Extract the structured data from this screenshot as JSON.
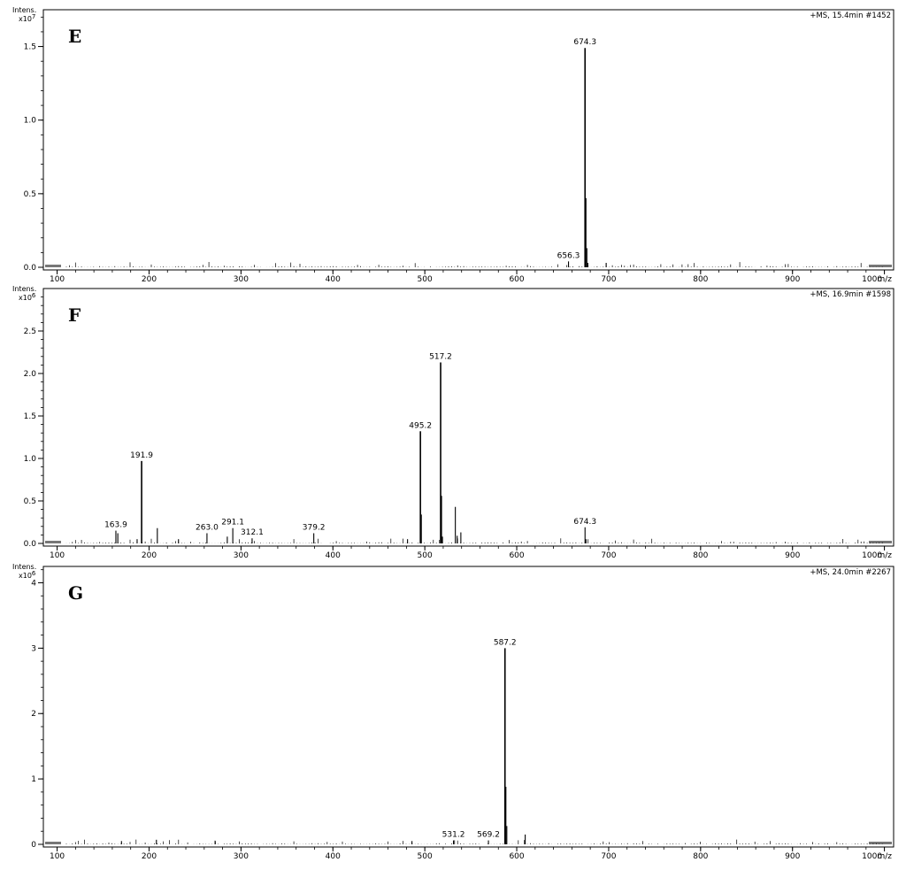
{
  "chart_data": [
    {
      "type": "line",
      "panel_label": "E",
      "ylabel": "Intens.",
      "yexp": "7",
      "xunit": "m/z",
      "info": "+MS, 15.4min #1452",
      "xlim": [
        85,
        1010
      ],
      "ylim": [
        0,
        1.75
      ],
      "xticks": [
        100,
        200,
        300,
        400,
        500,
        600,
        700,
        800,
        900,
        1000
      ],
      "xtick_labels": [
        "100",
        "200",
        "300",
        "400",
        "500",
        "600",
        "700",
        "800",
        "900",
        "1000"
      ],
      "yticks": [
        0.0,
        0.5,
        1.0,
        1.5
      ],
      "ytick_labels": [
        "0.0",
        "0.5",
        "1.0",
        "1.5"
      ],
      "peaks": [
        {
          "mz": 674.3,
          "intensity": 1.49,
          "label": "674.3"
        },
        {
          "mz": 656.3,
          "intensity": 0.04,
          "label": "656.3"
        },
        {
          "mz": 675.3,
          "intensity": 0.47
        },
        {
          "mz": 676.3,
          "intensity": 0.13
        },
        {
          "mz": 677.3,
          "intensity": 0.03
        },
        {
          "mz": 697.3,
          "intensity": 0.03
        }
      ]
    },
    {
      "type": "line",
      "panel_label": "F",
      "ylabel": "Intens.",
      "yexp": "6",
      "xunit": "m/z",
      "info": "+MS, 16.9min #1598",
      "xlim": [
        85,
        1010
      ],
      "ylim": [
        0,
        3.0
      ],
      "xticks": [
        100,
        200,
        300,
        400,
        500,
        600,
        700,
        800,
        900,
        1000
      ],
      "xtick_labels": [
        "100",
        "200",
        "300",
        "400",
        "500",
        "600",
        "700",
        "800",
        "900",
        "1000"
      ],
      "yticks": [
        0.0,
        0.5,
        1.0,
        1.5,
        2.0,
        2.5
      ],
      "ytick_labels": [
        "0.0",
        "0.5",
        "1.0",
        "1.5",
        "2.0",
        "2.5"
      ],
      "peaks": [
        {
          "mz": 517.2,
          "intensity": 2.13,
          "label": "517.2"
        },
        {
          "mz": 495.2,
          "intensity": 1.32,
          "label": "495.2"
        },
        {
          "mz": 191.9,
          "intensity": 0.97,
          "label": "191.9"
        },
        {
          "mz": 163.9,
          "intensity": 0.15,
          "label": "163.9"
        },
        {
          "mz": 263.0,
          "intensity": 0.12,
          "label": "263.0"
        },
        {
          "mz": 291.1,
          "intensity": 0.18,
          "label": "291.1"
        },
        {
          "mz": 312.1,
          "intensity": 0.06,
          "label": "312.1"
        },
        {
          "mz": 379.2,
          "intensity": 0.12,
          "label": "379.2"
        },
        {
          "mz": 674.3,
          "intensity": 0.19,
          "label": "674.3"
        },
        {
          "mz": 518.2,
          "intensity": 0.56
        },
        {
          "mz": 496.2,
          "intensity": 0.34
        },
        {
          "mz": 533.2,
          "intensity": 0.43
        },
        {
          "mz": 535.2,
          "intensity": 0.09
        },
        {
          "mz": 539.2,
          "intensity": 0.13
        },
        {
          "mz": 519.2,
          "intensity": 0.08
        },
        {
          "mz": 166.0,
          "intensity": 0.12
        },
        {
          "mz": 209.0,
          "intensity": 0.18
        },
        {
          "mz": 187.0,
          "intensity": 0.05
        },
        {
          "mz": 232.0,
          "intensity": 0.05
        },
        {
          "mz": 285.1,
          "intensity": 0.08
        },
        {
          "mz": 675.3,
          "intensity": 0.05
        },
        {
          "mz": 481.2,
          "intensity": 0.05
        }
      ]
    },
    {
      "type": "line",
      "panel_label": "G",
      "ylabel": "Intens.",
      "yexp": "6",
      "xunit": "m/z",
      "info": "+MS, 24.0min #2267",
      "xlim": [
        85,
        1010
      ],
      "ylim": [
        0,
        4.25
      ],
      "xticks": [
        100,
        200,
        300,
        400,
        500,
        600,
        700,
        800,
        900,
        1000
      ],
      "xtick_labels": [
        "100",
        "200",
        "300",
        "400",
        "500",
        "600",
        "700",
        "800",
        "900",
        "1000"
      ],
      "yticks": [
        0,
        1,
        2,
        3,
        4
      ],
      "ytick_labels": [
        "0",
        "1",
        "2",
        "3",
        "4"
      ],
      "peaks": [
        {
          "mz": 587.2,
          "intensity": 3.0,
          "label": "587.2"
        },
        {
          "mz": 531.2,
          "intensity": 0.06,
          "label": "531.2"
        },
        {
          "mz": 569.2,
          "intensity": 0.06,
          "label": "569.2"
        },
        {
          "mz": 588.2,
          "intensity": 0.88
        },
        {
          "mz": 589.2,
          "intensity": 0.28
        },
        {
          "mz": 609.2,
          "intensity": 0.15
        },
        {
          "mz": 486.0,
          "intensity": 0.05
        },
        {
          "mz": 208.0,
          "intensity": 0.07
        },
        {
          "mz": 170.0,
          "intensity": 0.05
        },
        {
          "mz": 272.0,
          "intensity": 0.05
        }
      ]
    }
  ]
}
